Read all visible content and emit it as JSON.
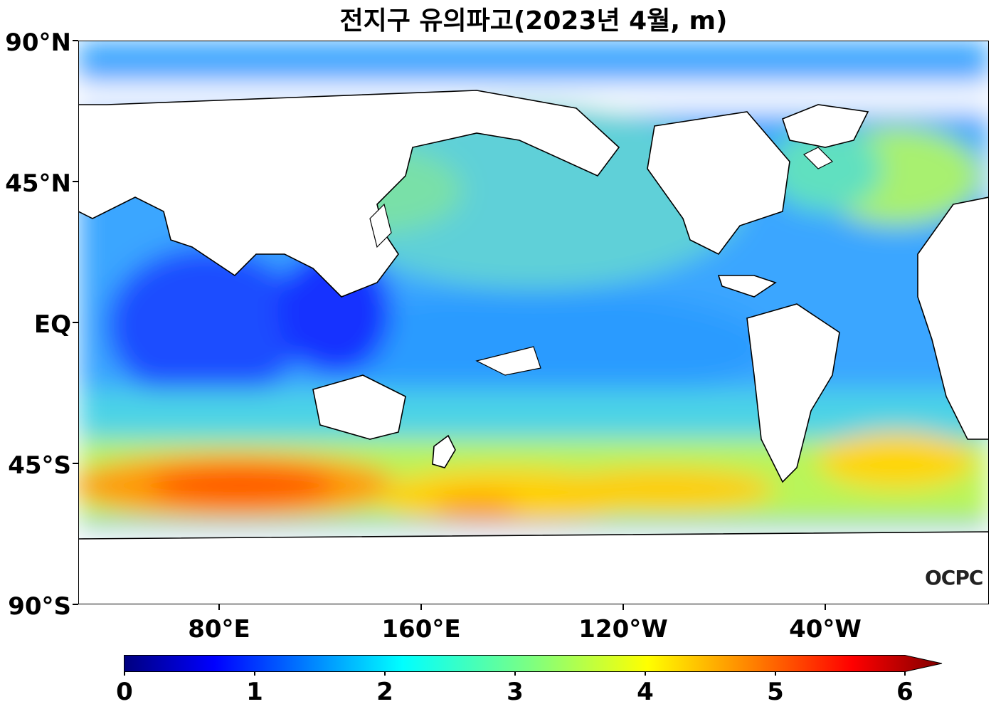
{
  "title": "전지구 유의파고(2023년 4월, m)",
  "logo_text": "OCPC",
  "map": {
    "projection": "plate carree",
    "lon_range": [
      40,
      400
    ],
    "lat_range": [
      -90,
      90
    ],
    "lat_labels": [
      "90°N",
      "45°N",
      "EQ",
      "45°S",
      "90°S"
    ],
    "lon_labels": [
      "80°E",
      "160°E",
      "120°W",
      "40°W"
    ],
    "coastline_color": "#000000",
    "land_color": "#ffffff"
  },
  "colorbar": {
    "colormap": "jet",
    "min": 0,
    "max": 6,
    "extend": "max",
    "tick_labels": [
      "0",
      "1",
      "2",
      "3",
      "4",
      "5",
      "6"
    ],
    "colors": [
      "#00007f",
      "#0000ff",
      "#007fff",
      "#00ffff",
      "#7fff7f",
      "#ffff00",
      "#ff7f00",
      "#ff0000",
      "#7f0000"
    ]
  }
}
